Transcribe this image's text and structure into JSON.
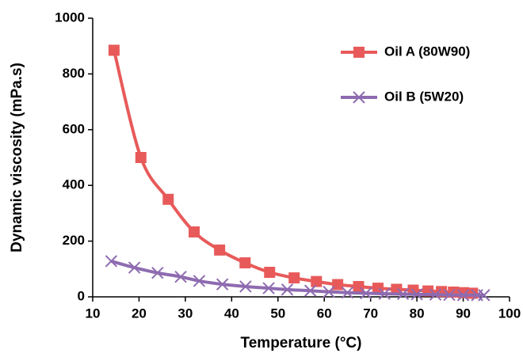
{
  "chart_data": {
    "type": "line",
    "x_label": "Temperature (°C)",
    "y_label": "Dynamic viscosity (mPa.s)",
    "xlim": [
      10,
      100
    ],
    "xticks": [
      10,
      20,
      30,
      40,
      50,
      60,
      70,
      80,
      90,
      100
    ],
    "ylim": [
      0,
      1000
    ],
    "yticks": [
      0,
      200,
      400,
      600,
      800,
      1000
    ],
    "grid": false,
    "legend": "upper right",
    "series": [
      {
        "name": "Oil A (80W90)",
        "color": "#e85a5a",
        "marker": "square",
        "x": [
          14.6,
          20.4,
          26.3,
          31.9,
          37.4,
          42.9,
          48.2,
          53.5,
          58.3,
          62.9,
          67.4,
          71.6,
          75.6,
          79.2,
          82.4,
          85.3,
          87.9,
          90.1,
          92
        ],
        "values": [
          885,
          500,
          350,
          233,
          168,
          122,
          88,
          68,
          55,
          44,
          37,
          31,
          27,
          24,
          21,
          19,
          17,
          15,
          13
        ]
      },
      {
        "name": "Oil B (5W20)",
        "color": "#8e6bb0",
        "marker": "x",
        "x": [
          14,
          19,
          24,
          29,
          33,
          38,
          43,
          48,
          52,
          57,
          61,
          65,
          69,
          73,
          77,
          80,
          84,
          87,
          90,
          93,
          94.5
        ],
        "values": [
          128,
          105,
          86,
          72,
          57,
          45,
          37,
          31,
          26,
          22,
          18,
          15,
          13,
          11,
          10,
          9,
          8,
          7,
          6,
          6,
          6
        ]
      }
    ]
  }
}
